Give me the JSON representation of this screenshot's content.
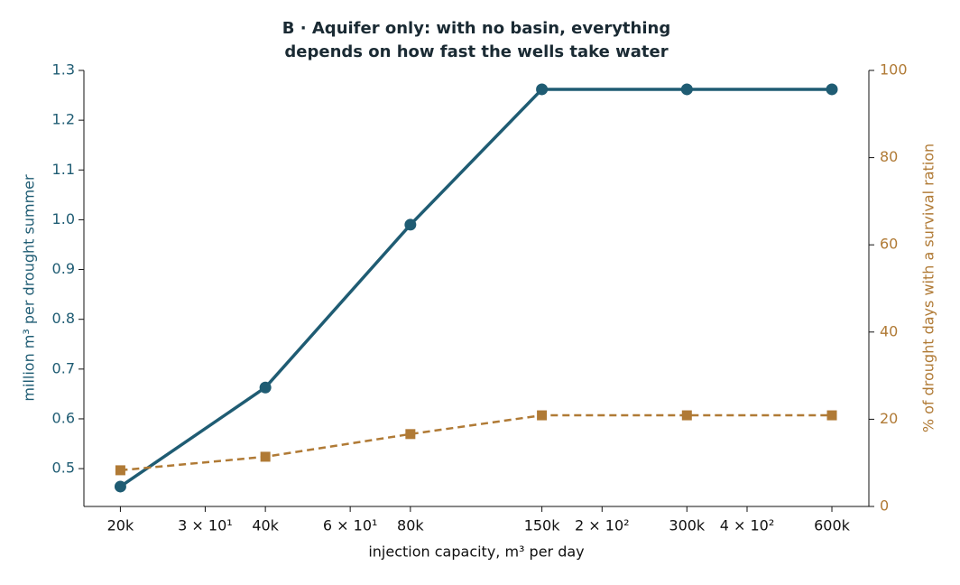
{
  "chart_data": {
    "type": "line",
    "title": [
      "B · Aquifer only: with no basin, everything",
      "depends on how fast the wells take water"
    ],
    "xlabel": "injection capacity, m³ per day",
    "ylabel": "million m³ per drought summer",
    "y2label": "% of drought days with a survival ration",
    "xscale": "log",
    "x": [
      20,
      40,
      80,
      150,
      300,
      600
    ],
    "xlim": [
      16.8,
      716
    ],
    "xticks": [
      {
        "value": 20,
        "label": "20k"
      },
      {
        "value": 30,
        "label": "3 × 10¹"
      },
      {
        "value": 40,
        "label": "40k"
      },
      {
        "value": 60,
        "label": "6 × 10¹"
      },
      {
        "value": 80,
        "label": "80k"
      },
      {
        "value": 150,
        "label": "150k"
      },
      {
        "value": 200,
        "label": "2 × 10²"
      },
      {
        "value": 300,
        "label": "300k"
      },
      {
        "value": 400,
        "label": "4 × 10²"
      },
      {
        "value": 600,
        "label": "600k"
      }
    ],
    "ylim": [
      0.424,
      1.3
    ],
    "yticks": [
      0.5,
      0.6,
      0.7,
      0.8,
      0.9,
      {
        "value": 1,
        "label": "1.0"
      },
      1.1,
      1.2,
      1.3
    ],
    "y2lim": [
      0,
      100
    ],
    "y2ticks": [
      0,
      20,
      40,
      60,
      80,
      100
    ],
    "series": [
      {
        "name": "million m³ per drought summer",
        "color": "#1f5c73",
        "marker": "circle",
        "dash": false,
        "values": [
          0.464,
          0.663,
          0.99,
          1.262,
          1.262,
          1.262
        ]
      },
      {
        "name": "% of drought days with a survival ration",
        "color": "#b07a35",
        "marker": "square",
        "dash": true,
        "axis": "y2",
        "values": [
          8.3,
          11.4,
          16.6,
          20.9,
          20.9,
          20.9
        ]
      }
    ]
  }
}
